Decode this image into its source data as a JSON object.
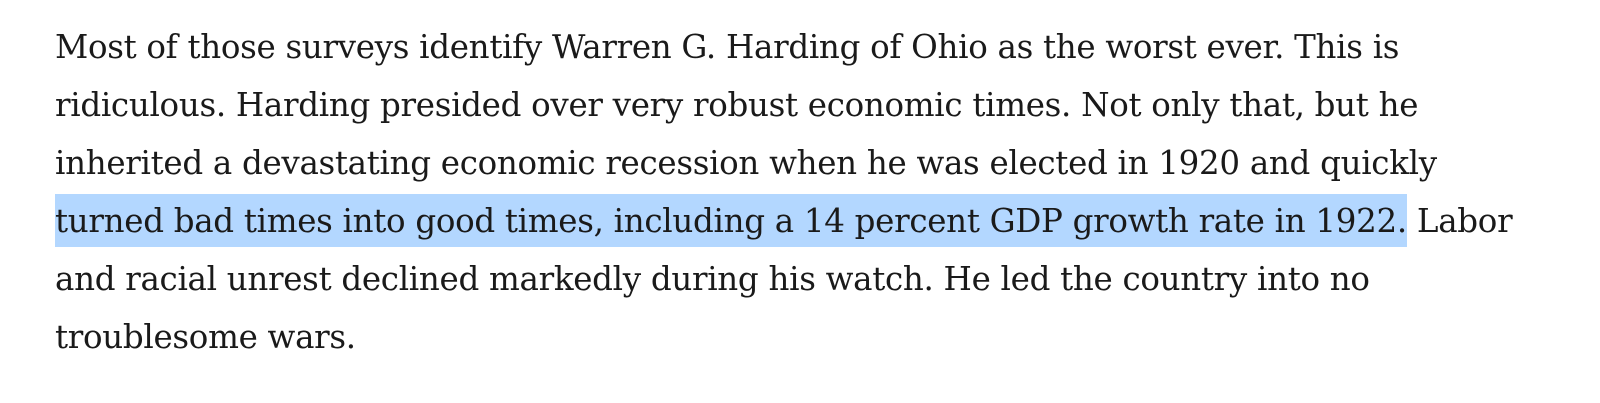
{
  "paragraph": {
    "lines": [
      "Most of those surveys identify Warren G. Harding of Ohio as the worst ever. This is",
      "ridiculous. Harding presided over very robust economic times. Not only that, but he",
      "inherited a devastating economic recession when he was elected in 1920 and quickly"
    ],
    "selected_text": "turned bad times into good times, including a 14 percent GDP growth rate in 1922.",
    "after_selection": " Labor",
    "lines_after": [
      "and racial unrest declined markedly during his watch. He led the country into no",
      "troublesome wars."
    ]
  },
  "colors": {
    "text": "#1a1a1a",
    "selection_highlight": "#b3d7ff",
    "background": "#ffffff"
  }
}
